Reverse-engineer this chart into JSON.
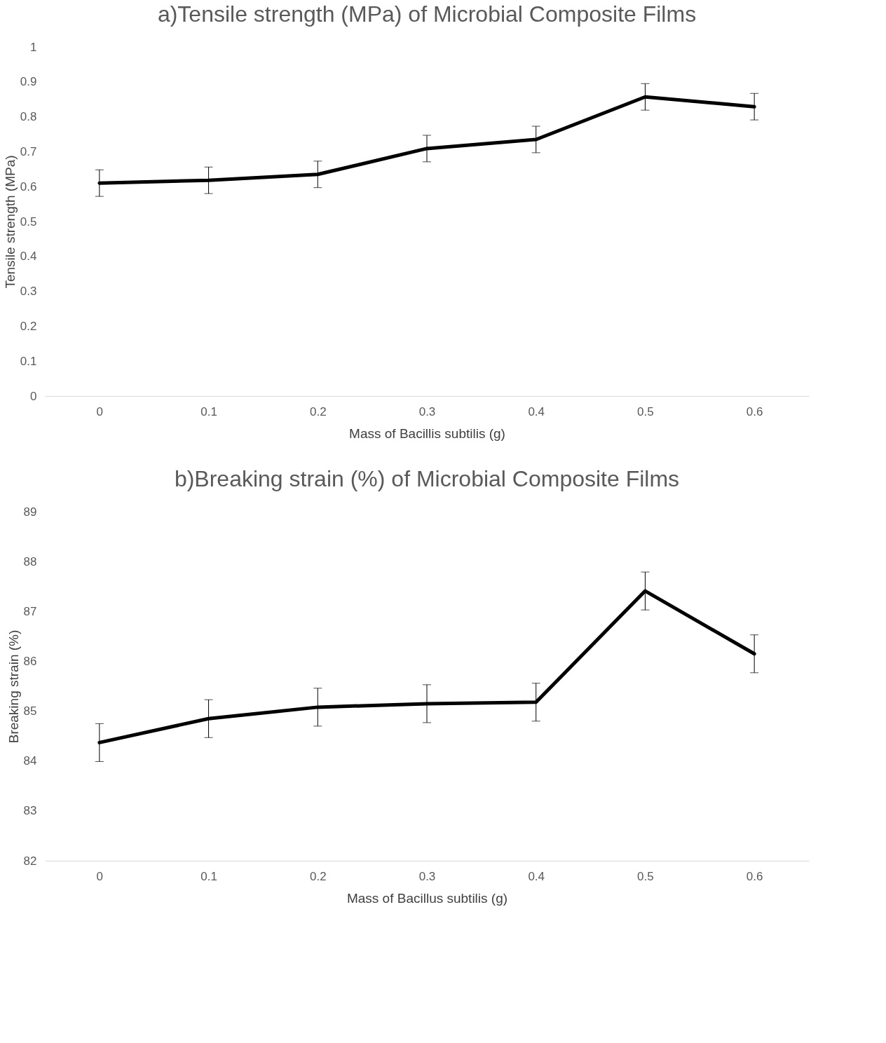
{
  "chart_data": [
    {
      "type": "line",
      "title": "a)Tensile strength (MPa) of Microbial Composite Films",
      "xlabel": "Mass of Bacillis subtilis (g)",
      "ylabel": "Tensile strength (MPa)",
      "categories": [
        "0",
        "0.1",
        "0.2",
        "0.3",
        "0.4",
        "0.5",
        "0.6"
      ],
      "series": [
        {
          "color": "#000000",
          "values": [
            0.61,
            0.618,
            0.635,
            0.709,
            0.735,
            0.857,
            0.829
          ],
          "errors": [
            0.038,
            0.038,
            0.038,
            0.038,
            0.038,
            0.038,
            0.038
          ]
        }
      ],
      "ylim": [
        0,
        1
      ],
      "yticks": [
        0,
        0.1,
        0.2,
        0.3,
        0.4,
        0.5,
        0.6,
        0.7,
        0.8,
        0.9,
        1
      ],
      "grid": false,
      "marker": "none",
      "line_style": "solid"
    },
    {
      "type": "line",
      "title": "b)Breaking strain (%) of Microbial Composite Films",
      "xlabel": "Mass of Bacillus subtilis (g)",
      "ylabel": "Breaking strain (%)",
      "categories": [
        "0",
        "0.1",
        "0.2",
        "0.3",
        "0.4",
        "0.5",
        "0.6"
      ],
      "series": [
        {
          "color": "#000000",
          "values": [
            84.37,
            84.85,
            85.08,
            85.15,
            85.18,
            87.41,
            86.15
          ],
          "errors": [
            0.38,
            0.38,
            0.38,
            0.38,
            0.38,
            0.38,
            0.38
          ]
        }
      ],
      "ylim": [
        82,
        89
      ],
      "yticks": [
        82,
        83,
        84,
        85,
        86,
        87,
        88,
        89
      ],
      "grid": false,
      "marker": "none",
      "line_style": "solid"
    }
  ]
}
